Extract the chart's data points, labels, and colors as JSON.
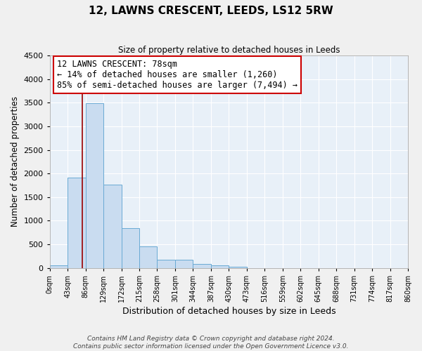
{
  "title": "12, LAWNS CRESCENT, LEEDS, LS12 5RW",
  "subtitle": "Size of property relative to detached houses in Leeds",
  "xlabel": "Distribution of detached houses by size in Leeds",
  "ylabel": "Number of detached properties",
  "bar_color": "#c9dcf0",
  "bar_edge_color": "#6aaad4",
  "axes_bg_color": "#e8f0f8",
  "fig_bg_color": "#f0f0f0",
  "grid_color": "#ffffff",
  "vline_x": 78,
  "vline_color": "#990000",
  "bin_edges": [
    0,
    43,
    86,
    129,
    172,
    215,
    258,
    301,
    344,
    387,
    430,
    473,
    516,
    559,
    602,
    645,
    688,
    731,
    774,
    817,
    860
  ],
  "bar_heights": [
    50,
    1910,
    3490,
    1770,
    840,
    455,
    175,
    170,
    90,
    55,
    30,
    0,
    0,
    0,
    0,
    0,
    0,
    0,
    0,
    0
  ],
  "ylim": [
    0,
    4500
  ],
  "yticks": [
    0,
    500,
    1000,
    1500,
    2000,
    2500,
    3000,
    3500,
    4000,
    4500
  ],
  "annotation_title": "12 LAWNS CRESCENT: 78sqm",
  "annotation_line1": "← 14% of detached houses are smaller (1,260)",
  "annotation_line2": "85% of semi-detached houses are larger (7,494) →",
  "annotation_box_color": "#ffffff",
  "annotation_box_edge": "#cc0000",
  "footer_line1": "Contains HM Land Registry data © Crown copyright and database right 2024.",
  "footer_line2": "Contains public sector information licensed under the Open Government Licence v3.0.",
  "tick_labels": [
    "0sqm",
    "43sqm",
    "86sqm",
    "129sqm",
    "172sqm",
    "215sqm",
    "258sqm",
    "301sqm",
    "344sqm",
    "387sqm",
    "430sqm",
    "473sqm",
    "516sqm",
    "559sqm",
    "602sqm",
    "645sqm",
    "688sqm",
    "731sqm",
    "774sqm",
    "817sqm",
    "860sqm"
  ]
}
